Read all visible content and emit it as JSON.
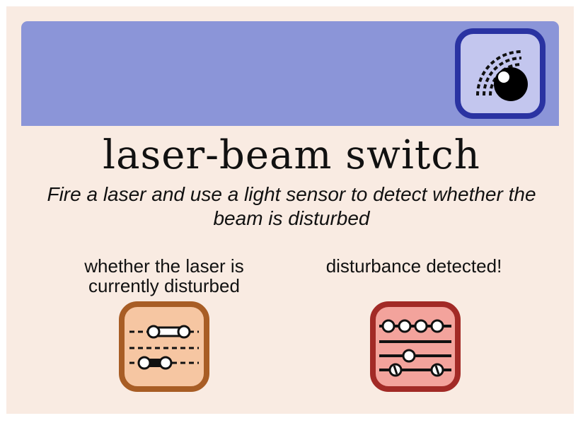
{
  "title": "laser-beam switch",
  "subtitle": "Fire a laser and use a light sensor to detect whether the beam is disturbed",
  "outputs": [
    {
      "label": "whether the laser is currently disturbed",
      "icon": "toggle-sliders-icon",
      "color": "#f6c6a2",
      "border": "#a85d25"
    },
    {
      "label": "disturbance detected!",
      "icon": "abacus-event-icon",
      "color": "#f3a39c",
      "border": "#a22a26"
    }
  ],
  "header": {
    "icon": "laser-sensor-icon",
    "color": "#8b95d8",
    "icon_fill": "#c3c6ee",
    "icon_border": "#2a33a2"
  }
}
